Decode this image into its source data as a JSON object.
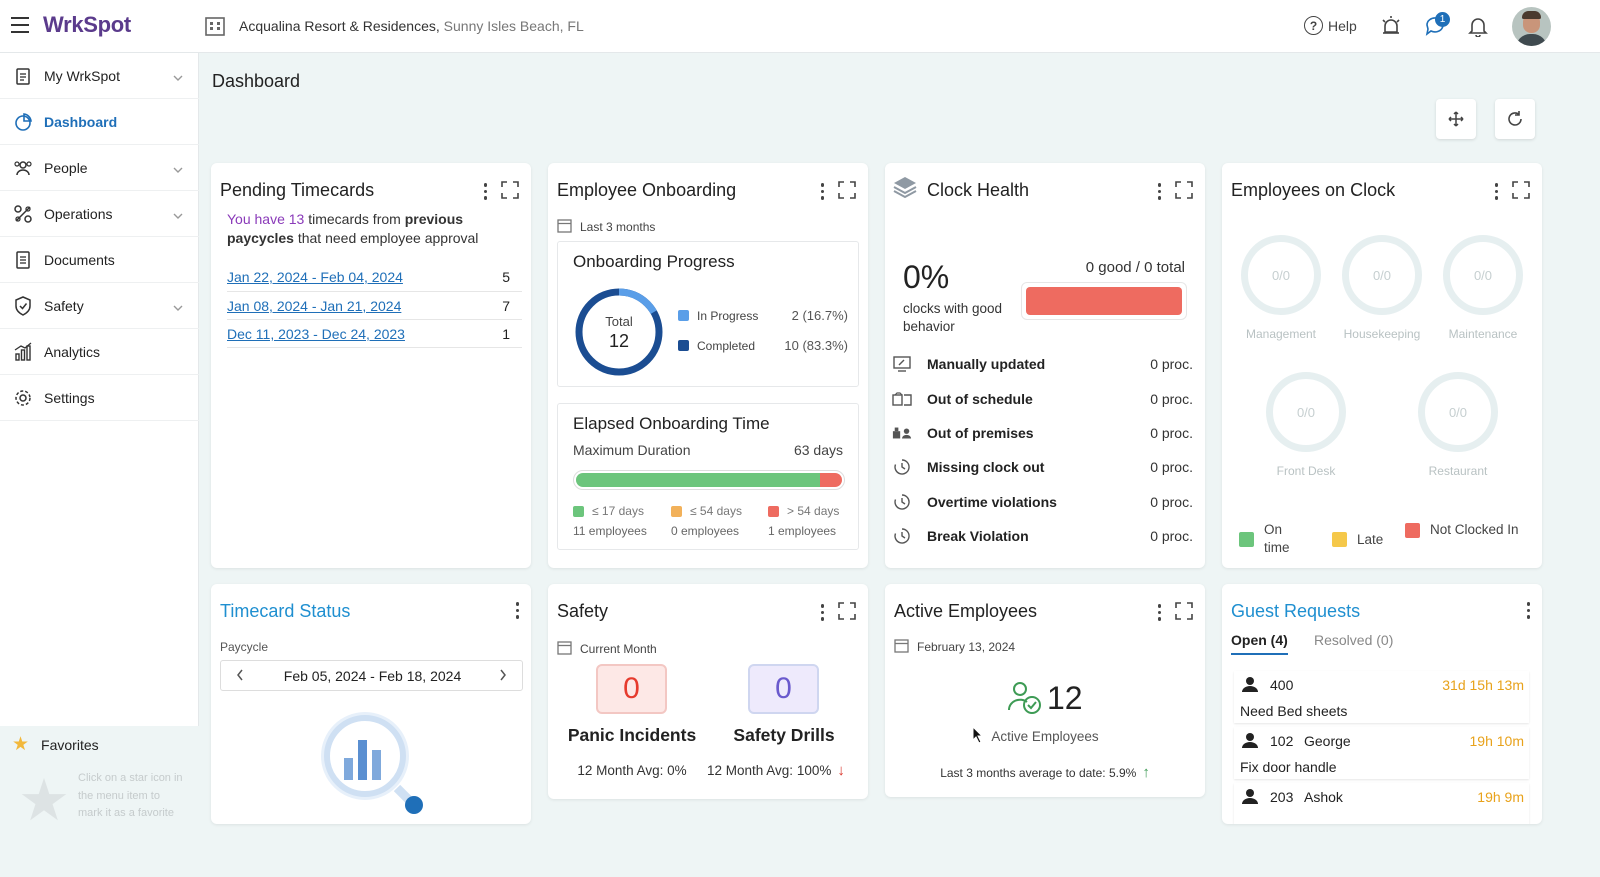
{
  "app": {
    "logo": "WrkSpot",
    "property_name": "Acqualina Resort & Residences,",
    "property_location": "Sunny Isles Beach, FL",
    "help_label": "Help",
    "notification_badge": "1"
  },
  "sidebar": {
    "items": [
      {
        "label": "My WrkSpot",
        "icon": "clipboard-icon",
        "expandable": true
      },
      {
        "label": "Dashboard",
        "icon": "pie-chart-icon",
        "active": true
      },
      {
        "label": "People",
        "icon": "people-icon",
        "expandable": true
      },
      {
        "label": "Operations",
        "icon": "operations-icon",
        "expandable": true
      },
      {
        "label": "Documents",
        "icon": "document-icon"
      },
      {
        "label": "Safety",
        "icon": "shield-icon",
        "expandable": true
      },
      {
        "label": "Analytics",
        "icon": "bar-chart-icon"
      },
      {
        "label": "Settings",
        "icon": "gear-icon"
      }
    ],
    "favorites": {
      "label": "Favorites",
      "hint": "Click on a star icon in the menu item to mark it as a favorite"
    }
  },
  "page": {
    "title": "Dashboard"
  },
  "pending_timecards": {
    "title": "Pending Timecards",
    "msg_prefix": "You have",
    "count": "13",
    "msg_mid": "timecards from",
    "msg_bold1": "previous",
    "msg_bold2": "paycycles",
    "msg_suffix": "that need employee approval",
    "rows": [
      {
        "range": "Jan 22, 2024 - Feb 04, 2024",
        "count": "5"
      },
      {
        "range": "Jan 08, 2024 - Jan 21, 2024",
        "count": "7"
      },
      {
        "range": "Dec 11, 2023 - Dec 24, 2023",
        "count": "1"
      }
    ]
  },
  "onboarding": {
    "title": "Employee Onboarding",
    "period": "Last 3 months",
    "progress_title": "Onboarding Progress",
    "total_label": "Total",
    "total": "12",
    "in_progress_label": "In Progress",
    "in_progress_value": "2 (16.7%)",
    "in_progress_fraction": 0.167,
    "completed_label": "Completed",
    "completed_value": "10 (83.3%)",
    "elapsed_title": "Elapsed Onboarding Time",
    "max_label": "Maximum Duration",
    "max_value": "63 days",
    "bar_green_fraction": 0.917,
    "bar_red_fraction": 0.083,
    "buckets": [
      {
        "label": "≤ 17 days",
        "count": "11 employees",
        "color": "#6cc57c"
      },
      {
        "label": "≤ 54 days",
        "count": "0 employees",
        "color": "#f2b15a"
      },
      {
        "label": "> 54 days",
        "count": "1 employees",
        "color": "#ee6b60"
      }
    ]
  },
  "clock_health": {
    "title": "Clock Health",
    "percent": "0%",
    "percent_caption": "clocks with good behavior",
    "good_total": "0 good / 0 total",
    "rows": [
      {
        "label": "Manually updated",
        "value": "0 proc.",
        "icon": "monitor-edit-icon"
      },
      {
        "label": "Out of schedule",
        "value": "0 proc.",
        "icon": "schedule-icon"
      },
      {
        "label": "Out of premises",
        "value": "0 proc.",
        "icon": "premises-icon"
      },
      {
        "label": "Missing clock out",
        "value": "0 proc.",
        "icon": "clock-icon"
      },
      {
        "label": "Overtime violations",
        "value": "0 proc.",
        "icon": "clock-icon"
      },
      {
        "label": "Break Violation",
        "value": "0 proc.",
        "icon": "clock-icon"
      }
    ]
  },
  "employees_on_clock": {
    "title": "Employees on Clock",
    "departments": [
      {
        "name": "Management",
        "value": "0/0"
      },
      {
        "name": "Housekeeping",
        "value": "0/0"
      },
      {
        "name": "Maintenance",
        "value": "0/0"
      },
      {
        "name": "Front Desk",
        "value": "0/0"
      },
      {
        "name": "Restaurant",
        "value": "0/0"
      }
    ],
    "legend": [
      {
        "label": "On time",
        "color": "#6cc57c"
      },
      {
        "label": "Late",
        "color": "#f5c84a"
      },
      {
        "label": "Not Clocked In",
        "color": "#ee6b60"
      }
    ]
  },
  "timecard_status": {
    "title": "Timecard Status",
    "paycycle_label": "Paycycle",
    "paycycle_value": "Feb 05, 2024 - Feb 18, 2024"
  },
  "safety": {
    "title": "Safety",
    "period": "Current Month",
    "panic_value": "0",
    "panic_label": "Panic Incidents",
    "panic_avg": "12 Month Avg: 0%",
    "drills_value": "0",
    "drills_label": "Safety Drills",
    "drills_avg": "12 Month Avg: 100%"
  },
  "active_employees": {
    "title": "Active Employees",
    "date": "February 13, 2024",
    "count": "12",
    "label": "Active Employees",
    "average": "Last 3 months average to date: 5.9%"
  },
  "guest_requests": {
    "title": "Guest Requests",
    "tab_open": "Open (4)",
    "tab_resolved": "Resolved (0)",
    "requests": [
      {
        "room": "400",
        "guest": "",
        "time": "31d 15h 13m",
        "text": "Need Bed sheets"
      },
      {
        "room": "102",
        "guest": "George",
        "time": "19h 10m",
        "text": "Fix door handle"
      },
      {
        "room": "203",
        "guest": "Ashok",
        "time": "19h 9m",
        "text": ""
      }
    ]
  }
}
